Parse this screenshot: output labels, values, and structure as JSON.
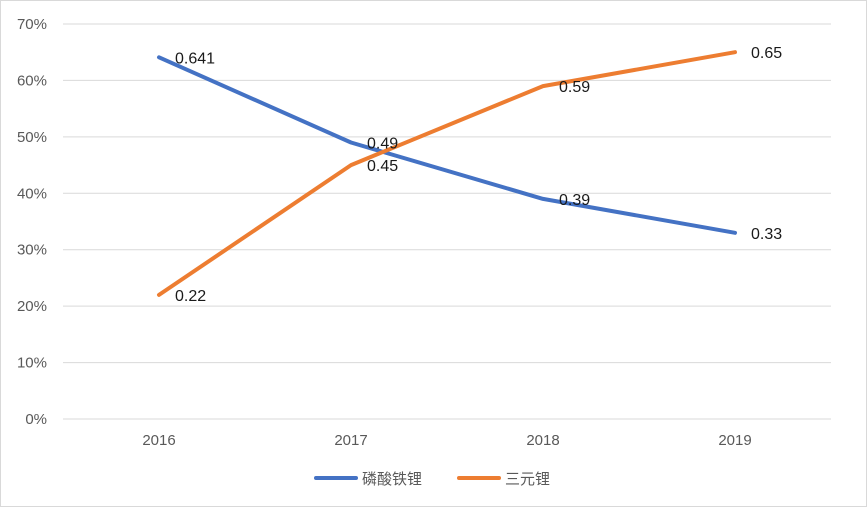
{
  "chart_data": {
    "type": "line",
    "categories": [
      "2016",
      "2017",
      "2018",
      "2019"
    ],
    "ylim": [
      0,
      70
    ],
    "yticks": [
      0,
      10,
      20,
      30,
      40,
      50,
      60,
      70
    ],
    "ytick_labels": [
      "0%",
      "10%",
      "20%",
      "30%",
      "40%",
      "50%",
      "60%",
      "70%"
    ],
    "grid": true,
    "legend_position": "bottom",
    "series": [
      {
        "name": "磷酸铁锂",
        "color": "#4472C4",
        "values": [
          64.1,
          49,
          39,
          33
        ],
        "labels": [
          "0.641",
          "0.49",
          "0.39",
          "0.33"
        ]
      },
      {
        "name": "三元锂",
        "color": "#ED7D31",
        "values": [
          22,
          45,
          59,
          65
        ],
        "labels": [
          "0.22",
          "0.45",
          "0.59",
          "0.65"
        ]
      }
    ]
  }
}
